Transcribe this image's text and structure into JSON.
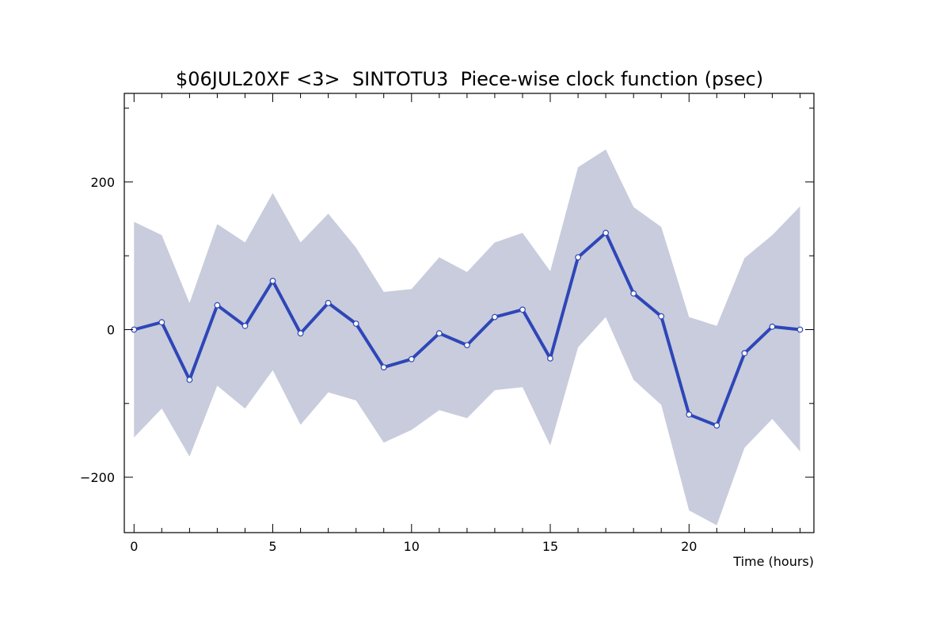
{
  "chart_data": {
    "type": "line",
    "title": "$06JUL20XF <3>  SINTOTU3  Piece-wise clock function (psec)",
    "xlabel": "Time (hours)",
    "ylabel": "",
    "xlim": [
      -0.35,
      24.5
    ],
    "ylim": [
      -275,
      320
    ],
    "x_ticks": [
      0,
      5,
      10,
      15,
      20
    ],
    "y_ticks": [
      -200,
      0,
      200
    ],
    "grid": false,
    "colors": {
      "line": "#2e46b8",
      "band": "#c8ccdc",
      "marker_fill": "#ffffff",
      "axis": "#000000"
    },
    "x": [
      0,
      1,
      2,
      3,
      4,
      5,
      6,
      7,
      8,
      9,
      10,
      11,
      12,
      13,
      14,
      15,
      16,
      17,
      18,
      19,
      20,
      21,
      22,
      23,
      24
    ],
    "series": [
      {
        "role": "value",
        "values": [
          0,
          10,
          -68,
          33,
          5,
          66,
          -5,
          36,
          8,
          -51,
          -40,
          -5,
          -21,
          17,
          27,
          -39,
          98,
          131,
          49,
          18,
          -115,
          -130,
          -32,
          4,
          0
        ]
      },
      {
        "role": "upper-bound",
        "values": [
          146,
          128,
          36,
          143,
          118,
          185,
          118,
          157,
          111,
          51,
          55,
          98,
          78,
          118,
          131,
          79,
          220,
          244,
          166,
          139,
          17,
          5,
          97,
          128,
          167
        ]
      },
      {
        "role": "lower-bound",
        "values": [
          -146,
          -107,
          -172,
          -76,
          -107,
          -55,
          -129,
          -85,
          -96,
          -153,
          -136,
          -109,
          -120,
          -82,
          -78,
          -157,
          -24,
          17,
          -68,
          -102,
          -245,
          -265,
          -160,
          -121,
          -165
        ]
      }
    ]
  }
}
